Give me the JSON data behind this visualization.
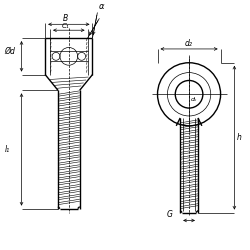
{
  "bg_color": "#ffffff",
  "line_color": "#000000",
  "fig_width": 2.5,
  "fig_height": 2.5,
  "dpi": 100,
  "labels": {
    "alpha": "α",
    "B": "B",
    "C1": "C₁",
    "d": "Ød",
    "l1": "l₁",
    "d2": "d₂",
    "G": "G",
    "h": "h",
    "dk": "dₖ"
  }
}
